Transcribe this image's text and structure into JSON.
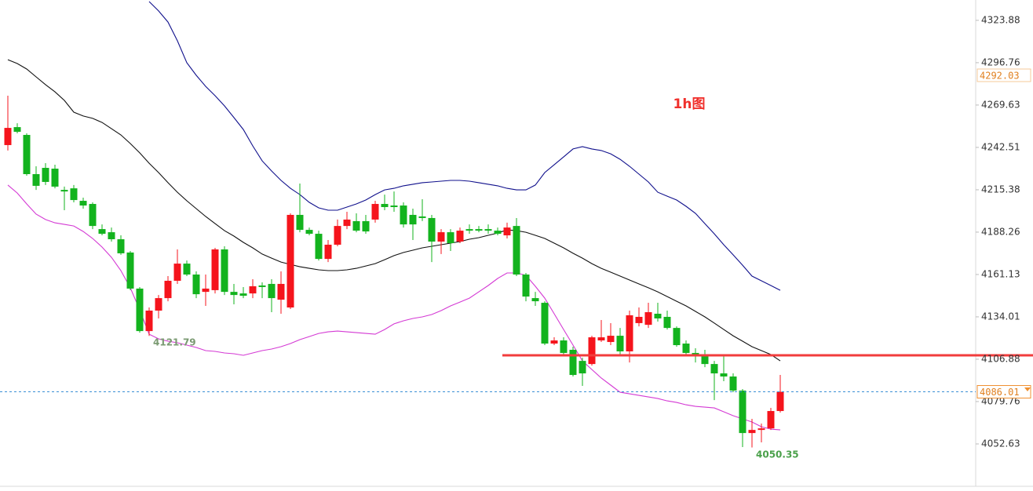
{
  "chart_data": {
    "type": "candlestick",
    "annotation": "1h图",
    "ylim": [
      4025.5,
      4336.9
    ],
    "yticks": [
      4323.88,
      4296.76,
      4269.63,
      4242.51,
      4215.38,
      4188.26,
      4161.13,
      4134.01,
      4106.88,
      4079.76,
      4052.63
    ],
    "up_color": "#f5141c",
    "down_color": "#13b31e",
    "open": [
      4244.0,
      4255.5,
      4250.5,
      4225.4,
      4229.4,
      4228.9,
      4215.3,
      4216.3,
      4208.3,
      4206.3,
      4190.2,
      4188.2,
      4183.7,
      4175.2,
      4152.1,
      4124.9,
      4138.0,
      4146.0,
      4157.1,
      4168.1,
      4161.1,
      4150.0,
      4151.1,
      4177.2,
      4150.0,
      4149.0,
      4149.0,
      4154.1,
      4155.1,
      4145.0,
      4140.0,
      4199.3,
      4189.7,
      4187.2,
      4171.1,
      4180.2,
      4192.2,
      4195.3,
      4195.3,
      4196.3,
      4206.3,
      4205.3,
      4205.3,
      4199.3,
      4198.3,
      4197.3,
      4182.2,
      4188.2,
      4182.2,
      4190.2,
      4190.2,
      4190.2,
      4189.2,
      4186.2,
      4192.2,
      4161.1,
      4146.0,
      4143.0,
      4116.9,
      4118.9,
      4112.9,
      4105.8,
      4103.8,
      4118.9,
      4117.9,
      4121.9,
      4111.9,
      4130.0,
      4128.9,
      4136.0,
      4134.0,
      4126.9,
      4116.9,
      4110.9,
      4108.9,
      4103.8,
      4097.8,
      4095.8,
      4086.8,
      4059.6,
      4061.6,
      4062.6,
      4073.7
    ],
    "high": [
      4275.6,
      4258.0,
      4251.5,
      4230.4,
      4232.4,
      4231.4,
      4217.4,
      4218.4,
      4210.3,
      4207.3,
      4193.2,
      4191.2,
      4186.2,
      4176.2,
      4153.1,
      4140.0,
      4148.0,
      4160.1,
      4177.2,
      4170.1,
      4163.1,
      4161.1,
      4178.2,
      4179.2,
      4155.1,
      4153.1,
      4158.1,
      4156.1,
      4158.1,
      4163.1,
      4200.3,
      4219.4,
      4191.2,
      4189.2,
      4183.2,
      4196.3,
      4201.3,
      4200.3,
      4199.3,
      4208.3,
      4212.3,
      4214.3,
      4207.3,
      4203.3,
      4209.3,
      4199.3,
      4190.2,
      4190.2,
      4191.2,
      4193.2,
      4192.2,
      4193.2,
      4191.2,
      4194.3,
      4197.3,
      4162.1,
      4150.0,
      4144.0,
      4120.9,
      4120.9,
      4114.9,
      4107.8,
      4121.9,
      4132.0,
      4130.0,
      4126.9,
      4138.0,
      4140.0,
      4143.0,
      4143.0,
      4138.0,
      4127.9,
      4118.9,
      4113.9,
      4112.9,
      4105.8,
      4109.9,
      4097.8,
      4087.8,
      4068.7,
      4065.7,
      4075.7,
      4096.8
    ],
    "low": [
      4240.5,
      4251.5,
      4224.4,
      4215.3,
      4218.4,
      4216.3,
      4202.3,
      4207.3,
      4203.3,
      4190.2,
      4186.2,
      4182.2,
      4173.7,
      4151.1,
      4123.9,
      4121.79,
      4133.0,
      4144.0,
      4155.1,
      4160.1,
      4146.0,
      4141.0,
      4149.0,
      4148.0,
      4142.0,
      4146.0,
      4146.0,
      4146.0,
      4137.0,
      4136.0,
      4139.0,
      4188.2,
      4186.2,
      4170.1,
      4169.1,
      4179.2,
      4190.2,
      4188.2,
      4187.2,
      4194.3,
      4202.3,
      4201.3,
      4191.2,
      4183.2,
      4195.3,
      4169.1,
      4174.2,
      4176.2,
      4181.2,
      4187.2,
      4188.2,
      4187.2,
      4186.2,
      4184.2,
      4160.1,
      4144.0,
      4141.0,
      4115.9,
      4115.9,
      4108.9,
      4095.8,
      4089.8,
      4102.8,
      4117.9,
      4115.9,
      4109.9,
      4104.8,
      4127.9,
      4126.9,
      4131.0,
      4125.9,
      4114.9,
      4109.9,
      4104.8,
      4101.8,
      4080.7,
      4092.8,
      4085.8,
      4050.6,
      4050.35,
      4053.6,
      4061.6,
      4072.7
    ],
    "close": [
      4255.0,
      4252.5,
      4225.4,
      4217.9,
      4220.4,
      4217.4,
      4214.3,
      4208.8,
      4205.3,
      4192.2,
      4187.2,
      4183.7,
      4174.7,
      4152.1,
      4124.9,
      4138.0,
      4146.0,
      4157.1,
      4168.1,
      4161.1,
      4148.5,
      4152.1,
      4177.2,
      4150.0,
      4148.0,
      4147.5,
      4153.6,
      4153.1,
      4146.0,
      4155.1,
      4199.3,
      4189.7,
      4187.2,
      4171.1,
      4180.2,
      4192.2,
      4196.3,
      4189.2,
      4188.7,
      4206.3,
      4204.3,
      4204.3,
      4193.2,
      4193.2,
      4197.3,
      4182.2,
      4188.2,
      4181.2,
      4189.2,
      4189.2,
      4189.2,
      4189.2,
      4187.2,
      4191.2,
      4161.1,
      4147.0,
      4144.0,
      4116.9,
      4118.9,
      4110.9,
      4096.8,
      4097.8,
      4120.9,
      4120.9,
      4121.9,
      4111.9,
      4135.0,
      4134.0,
      4137.0,
      4133.0,
      4126.9,
      4115.9,
      4110.9,
      4108.9,
      4103.8,
      4097.8,
      4095.8,
      4086.8,
      4059.6,
      4061.6,
      4062.6,
      4073.7,
      4086.01
    ],
    "lines": [
      {
        "color": "#10108c",
        "values": [
          null,
          null,
          null,
          null,
          null,
          null,
          null,
          null,
          null,
          null,
          null,
          null,
          null,
          null,
          null,
          4335.9,
          4329.9,
          4322.8,
          4310.8,
          4296.7,
          4288.7,
          4281.6,
          4275.6,
          4269.1,
          4261.6,
          4254.0,
          4243.5,
          4233.9,
          4227.4,
          4221.4,
          4216.3,
          4212.3,
          4207.3,
          4203.8,
          4202.3,
          4202.3,
          4204.3,
          4206.3,
          4208.8,
          4212.3,
          4215.3,
          4216.3,
          4217.9,
          4218.9,
          4219.9,
          4220.4,
          4220.9,
          4221.4,
          4221.4,
          4220.9,
          4219.9,
          4218.9,
          4217.9,
          4216.3,
          4215.3,
          4215.3,
          4218.4,
          4226.4,
          4231.4,
          4236.4,
          4241.5,
          4243.0,
          4241.5,
          4240.5,
          4238.4,
          4234.9,
          4230.4,
          4225.4,
          4220.4,
          4213.8,
          4211.3,
          4208.8,
          4204.8,
          4200.3,
          4193.7,
          4187.2,
          4180.2,
          4173.7,
          4167.1,
          4160.1,
          4157.1,
          4154.1,
          4151.0
        ]
      },
      {
        "color": "#111111",
        "values": [
          4298.7,
          4296.2,
          4292.7,
          4287.7,
          4282.7,
          4278.1,
          4272.6,
          4265.1,
          4262.6,
          4261.1,
          4258.5,
          4254.5,
          4250.5,
          4245.0,
          4239.0,
          4232.4,
          4226.4,
          4219.9,
          4213.8,
          4208.3,
          4203.3,
          4198.3,
          4193.7,
          4189.2,
          4185.7,
          4181.7,
          4178.2,
          4174.2,
          4171.6,
          4169.1,
          4167.6,
          4166.1,
          4165.1,
          4164.1,
          4163.6,
          4163.6,
          4164.1,
          4165.1,
          4166.6,
          4168.1,
          4170.6,
          4173.2,
          4175.2,
          4176.7,
          4178.2,
          4179.2,
          4180.2,
          4181.2,
          4182.2,
          4183.7,
          4184.7,
          4186.2,
          4187.7,
          4189.7,
          4189.2,
          4188.2,
          4186.2,
          4184.2,
          4181.2,
          4178.2,
          4174.7,
          4171.6,
          4168.1,
          4165.1,
          4162.6,
          4160.1,
          4157.6,
          4155.1,
          4152.6,
          4150.0,
          4147.0,
          4144.0,
          4141.0,
          4137.5,
          4134.0,
          4130.0,
          4125.9,
          4121.9,
          4118.4,
          4114.9,
          4112.4,
          4109.9,
          4105.8
        ]
      },
      {
        "color": "#d43ad4",
        "values": [
          4218.4,
          4213.3,
          4206.3,
          4199.8,
          4196.3,
          4194.2,
          4193.2,
          4192.2,
          4188.7,
          4184.2,
          4178.7,
          4172.1,
          4163.6,
          4152.6,
          4138.5,
          4122.9,
          4119.9,
          4118.4,
          4117.4,
          4115.9,
          4114.4,
          4112.4,
          4111.9,
          4110.9,
          4110.4,
          4109.4,
          4110.9,
          4112.4,
          4113.4,
          4114.9,
          4116.9,
          4119.4,
          4121.4,
          4123.4,
          4124.4,
          4124.9,
          4124.4,
          4123.9,
          4123.4,
          4122.9,
          4125.9,
          4129.5,
          4131.5,
          4133.0,
          4134.0,
          4135.5,
          4138.0,
          4141.0,
          4143.5,
          4146.0,
          4150.0,
          4154.1,
          4158.6,
          4162.1,
          4162.1,
          4160.6,
          4153.6,
          4146.0,
          4136.0,
          4125.9,
          4115.9,
          4105.8,
          4100.3,
          4094.8,
          4090.3,
          4085.7,
          4084.7,
          4083.7,
          4082.7,
          4081.7,
          4080.2,
          4079.2,
          4077.7,
          4076.7,
          4076.2,
          4075.7,
          4073.2,
          4070.7,
          4068.7,
          4066.7,
          4063.6,
          4062.1,
          4061.6
        ]
      }
    ],
    "hline": {
      "value": 4109.4,
      "color": "#f23c3c"
    },
    "last_price": 4086.01,
    "mark_price": 4292.03
  }
}
